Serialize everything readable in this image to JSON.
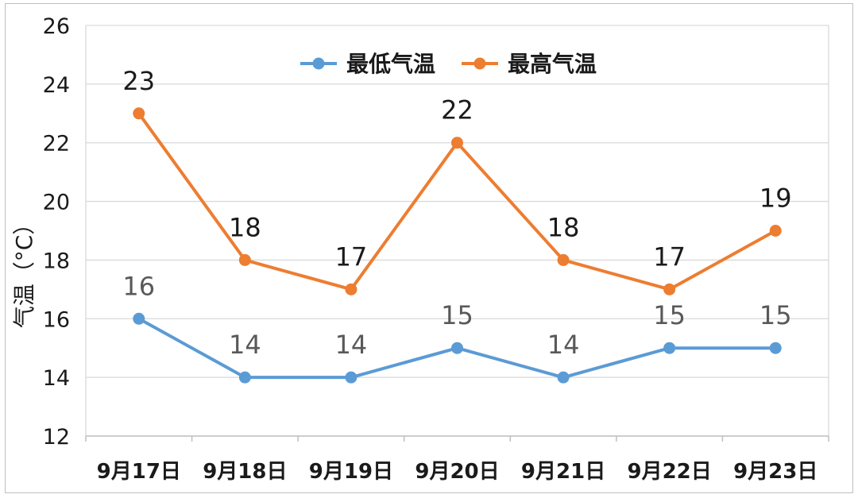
{
  "chart_data": {
    "type": "line",
    "categories": [
      "9月17日",
      "9月18日",
      "9月19日",
      "9月20日",
      "9月21日",
      "9月22日",
      "9月23日"
    ],
    "series": [
      {
        "name": "最低气温",
        "values": [
          16,
          14,
          14,
          15,
          14,
          15,
          15
        ],
        "color": "#5b9bd5",
        "label_color": "#595959"
      },
      {
        "name": "最高气温",
        "values": [
          23,
          18,
          17,
          22,
          18,
          17,
          19
        ],
        "color": "#ed7d31",
        "label_color": "#1a1a1a"
      }
    ],
    "title": "",
    "xlabel": "",
    "ylabel": "气温（°C）",
    "ylim": [
      12,
      26
    ],
    "yticks": [
      12,
      14,
      16,
      18,
      20,
      22,
      24,
      26
    ],
    "grid": true,
    "legend": "top-center"
  }
}
